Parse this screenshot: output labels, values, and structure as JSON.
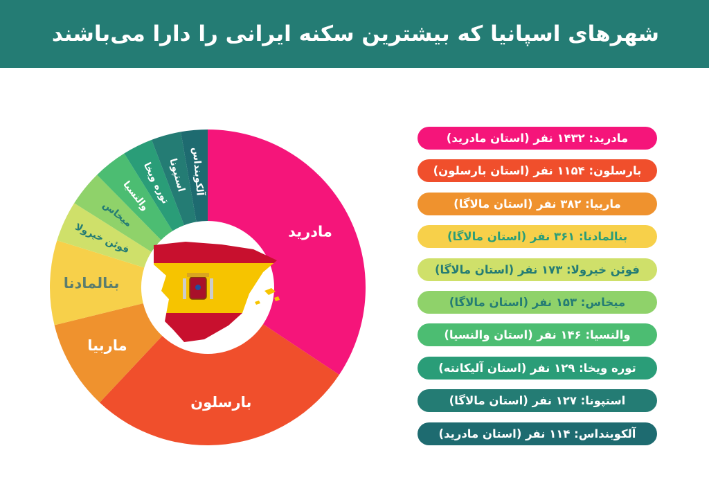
{
  "title": "شهرهای اسپانیا که بیشترین سکنه ایرانی را دارا می‌باشند",
  "chart_data": {
    "type": "pie",
    "title": "شهرهای اسپانیا که بیشترین سکنه ایرانی را دارا می‌باشند",
    "categories": [
      "مادرید",
      "بارسلون",
      "ماربیا",
      "بنالمادنا",
      "فوئن خیرولا",
      "میخاس",
      "والنسیا",
      "توره ویخا",
      "استپونا",
      "آلکوبنداس"
    ],
    "values": [
      1432,
      1154,
      382,
      361,
      173,
      153,
      146,
      129,
      127,
      114
    ],
    "colors": [
      "#f5157a",
      "#f04f2c",
      "#ef922e",
      "#f7d04a",
      "#cfe06a",
      "#8fd26a",
      "#4cbd72",
      "#2a9d78",
      "#247c74",
      "#1e6b70"
    ],
    "label_colors": [
      "#ffffff",
      "#ffffff",
      "#ffffff",
      "#5b7d6e",
      "#247c74",
      "#247c74",
      "#ffffff",
      "#ffffff",
      "#ffffff",
      "#ffffff"
    ],
    "legend": [
      "مادرید: ۱۴۳۲ نفر (استان مادرید)",
      "بارسلون: ۱۱۵۴ نفر (استان بارسلون)",
      "ماربیا: ۳۸۲ نفر (استان مالاگا)",
      "بنالمادنا: ۳۶۱ نفر (استان مالاگا)",
      "فوئن خیرولا: ۱۷۳ نفر (استان مالاگا)",
      "میخاس: ۱۵۳ نفر (استان مالاگا)",
      "والنسیا: ۱۴۶ نفر (استان والنسیا)",
      "توره ویخا: ۱۲۹ نفر (استان آلیکانته)",
      "استپونا: ۱۲۷ نفر (استان مالاگا)",
      "آلکوبنداس: ۱۱۴ نفر (استان مادرید)"
    ],
    "legend_text_colors": [
      "#ffffff",
      "#ffffff",
      "#ffffff",
      "#2a9d78",
      "#247c74",
      "#247c74",
      "#ffffff",
      "#ffffff",
      "#ffffff",
      "#ffffff"
    ]
  }
}
